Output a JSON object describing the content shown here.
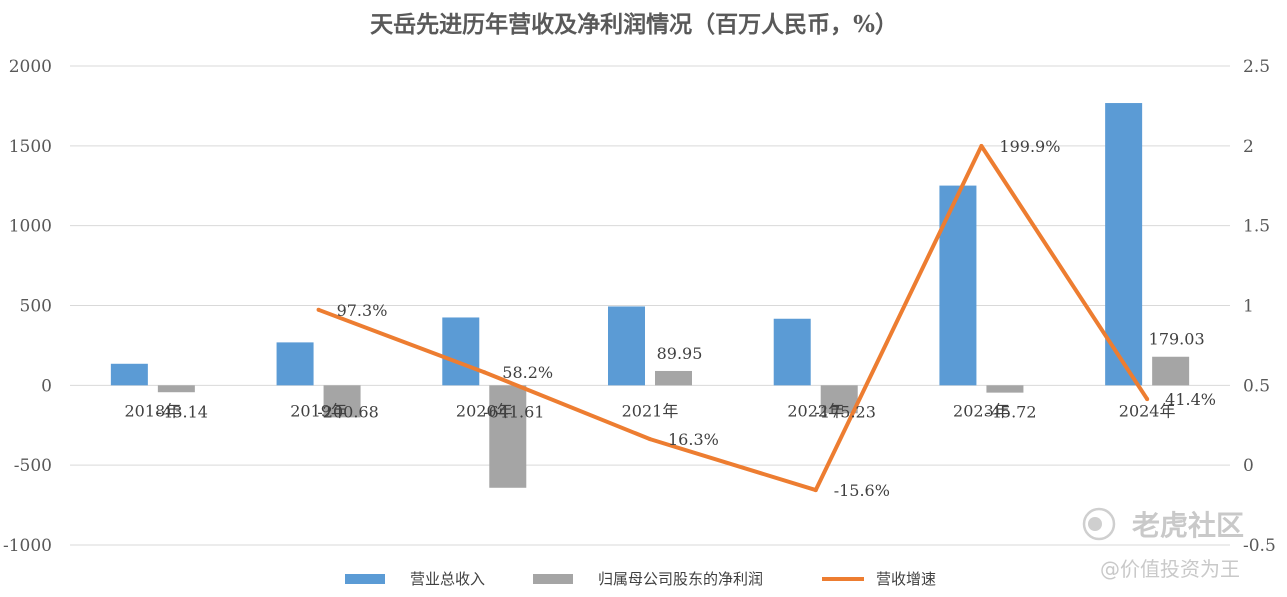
{
  "chart_data": {
    "type": "bar",
    "title": "天岳先进历年营收及净利润情况（百万人民币，%）",
    "categories": [
      "2018年",
      "2019年",
      "2020年",
      "2021年",
      "2022年",
      "2023年",
      "2024年"
    ],
    "series": [
      {
        "name": "营业总收入",
        "type": "bar",
        "axis": "left",
        "color": "#5b9bd5",
        "values": [
          135,
          269,
          425,
          494,
          417,
          1251,
          1768
        ]
      },
      {
        "name": "归属母公司股东的净利润",
        "type": "bar",
        "axis": "left",
        "color": "#a5a5a5",
        "values": [
          -43.14,
          -200.68,
          -641.61,
          89.95,
          -175.23,
          -45.72,
          179.03
        ],
        "labels": [
          "-43.14",
          "-200.68",
          "-641.61",
          "89.95",
          "-175.23",
          "-45.72",
          "179.03"
        ]
      },
      {
        "name": "营收增速",
        "type": "line",
        "axis": "right",
        "color": "#ed7d31",
        "values": [
          null,
          0.973,
          0.582,
          0.163,
          -0.156,
          1.999,
          0.414
        ],
        "labels": [
          null,
          "97.3%",
          "58.2%",
          "16.3%",
          "-15.6%",
          "199.9%",
          "41.4%"
        ]
      }
    ],
    "ylim_left": [
      -1000,
      2000
    ],
    "yticks_left": [
      "-1000",
      "-500",
      "0",
      "500",
      "1000",
      "1500",
      "2000"
    ],
    "ylim_right": [
      -0.5,
      2.5
    ],
    "yticks_right": [
      "-0.5",
      "0",
      "0.5",
      "1",
      "1.5",
      "2",
      "2.5"
    ],
    "grid": true,
    "legend_position": "bottom"
  },
  "watermark": {
    "brand": "老虎社区",
    "slogan": "@价值投资为王"
  }
}
